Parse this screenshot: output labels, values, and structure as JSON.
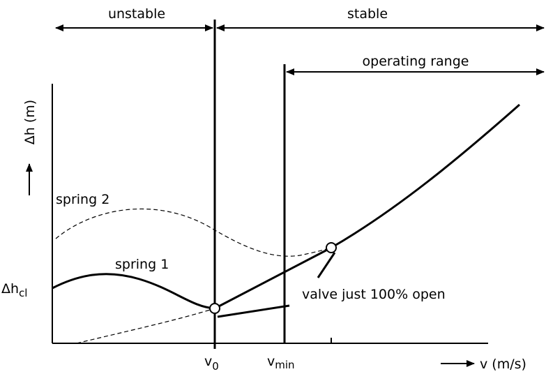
{
  "labels": {
    "unstable": "unstable",
    "stable": "stable",
    "operating_range": "operating range",
    "y_axis": "Δh (m)",
    "x_axis": "v (m/s)",
    "spring_2": "spring 2",
    "spring_1": "spring 1",
    "dh_cl": {
      "main": "Δh",
      "sub": "cl"
    },
    "valve": "valve just 100% open",
    "v0": {
      "main": "v",
      "sub": "0"
    },
    "vmin": {
      "main": "v",
      "sub": "min"
    }
  }
}
